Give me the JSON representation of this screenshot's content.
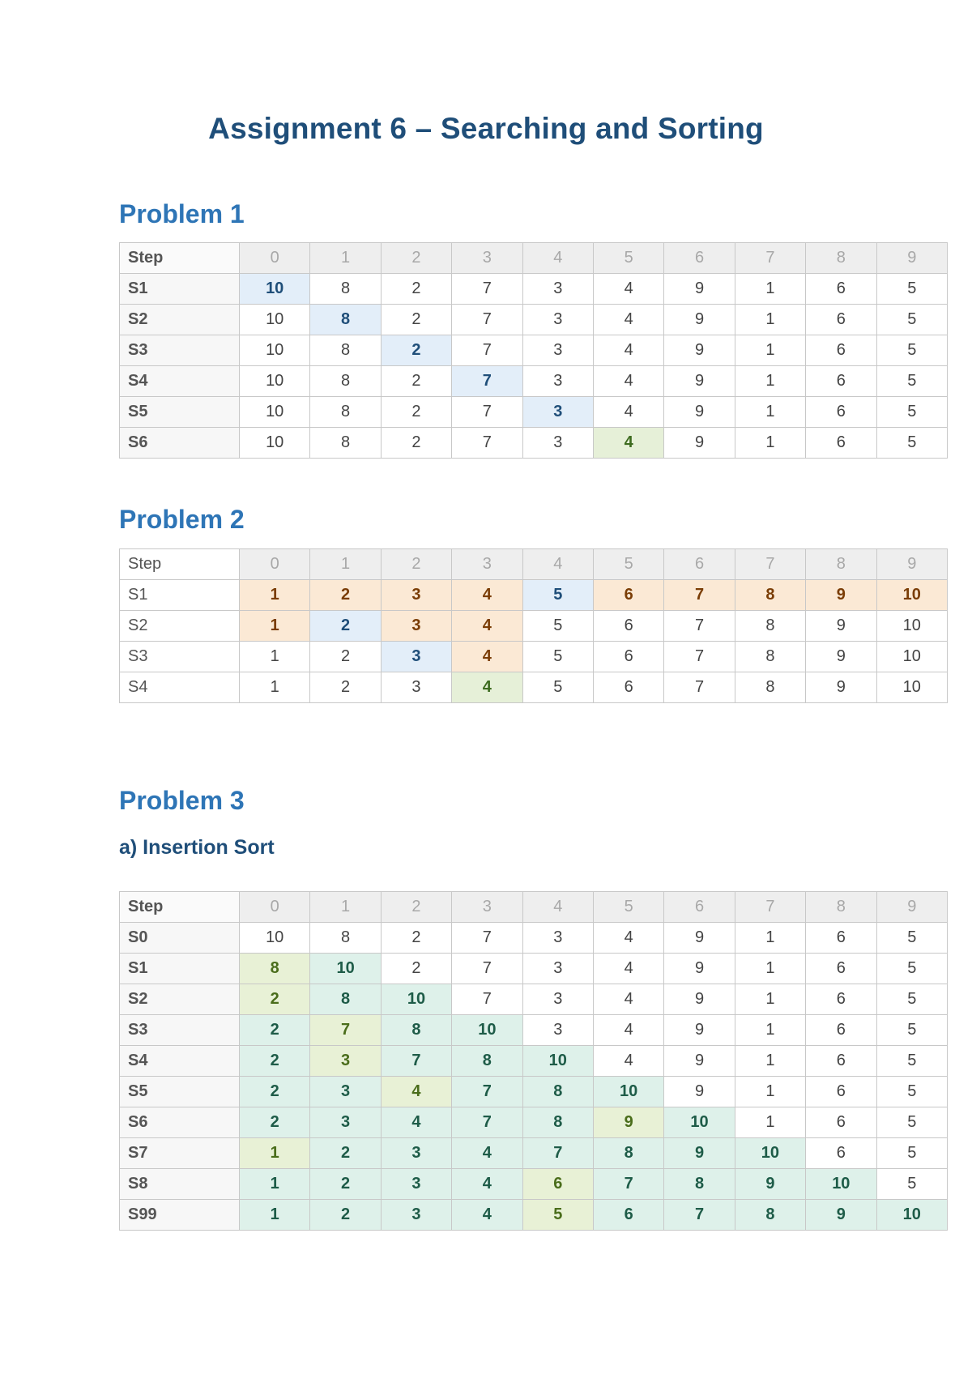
{
  "title": "Assignment 6 – Searching and Sorting",
  "problem1": {
    "heading": "Problem 1",
    "header": [
      "Step",
      "0",
      "1",
      "2",
      "3",
      "4",
      "5",
      "6",
      "7",
      "8",
      "9"
    ],
    "rows": [
      {
        "step": "S1",
        "values": [
          "10",
          "8",
          "2",
          "7",
          "3",
          "4",
          "9",
          "1",
          "6",
          "5"
        ],
        "hl": {
          "0": "blue"
        }
      },
      {
        "step": "S2",
        "values": [
          "10",
          "8",
          "2",
          "7",
          "3",
          "4",
          "9",
          "1",
          "6",
          "5"
        ],
        "hl": {
          "1": "blue"
        }
      },
      {
        "step": "S3",
        "values": [
          "10",
          "8",
          "2",
          "7",
          "3",
          "4",
          "9",
          "1",
          "6",
          "5"
        ],
        "hl": {
          "2": "blue"
        }
      },
      {
        "step": "S4",
        "values": [
          "10",
          "8",
          "2",
          "7",
          "3",
          "4",
          "9",
          "1",
          "6",
          "5"
        ],
        "hl": {
          "3": "blue"
        }
      },
      {
        "step": "S5",
        "values": [
          "10",
          "8",
          "2",
          "7",
          "3",
          "4",
          "9",
          "1",
          "6",
          "5"
        ],
        "hl": {
          "4": "blue"
        }
      },
      {
        "step": "S6",
        "values": [
          "10",
          "8",
          "2",
          "7",
          "3",
          "4",
          "9",
          "1",
          "6",
          "5"
        ],
        "hl": {
          "5": "green"
        }
      }
    ]
  },
  "problem2": {
    "heading": "Problem 2",
    "header": [
      "Step",
      "0",
      "1",
      "2",
      "3",
      "4",
      "5",
      "6",
      "7",
      "8",
      "9"
    ],
    "rows": [
      {
        "step": "S1",
        "values": [
          "1",
          "2",
          "3",
          "4",
          "5",
          "6",
          "7",
          "8",
          "9",
          "10"
        ],
        "hl": {
          "0": "orange",
          "1": "orange",
          "2": "orange",
          "3": "orange",
          "4": "blue",
          "5": "orange",
          "6": "orange",
          "7": "orange",
          "8": "orange",
          "9": "orange"
        }
      },
      {
        "step": "S2",
        "values": [
          "1",
          "2",
          "3",
          "4",
          "5",
          "6",
          "7",
          "8",
          "9",
          "10"
        ],
        "hl": {
          "0": "orange",
          "1": "blue",
          "2": "orange",
          "3": "orange"
        }
      },
      {
        "step": "S3",
        "values": [
          "1",
          "2",
          "3",
          "4",
          "5",
          "6",
          "7",
          "8",
          "9",
          "10"
        ],
        "hl": {
          "2": "blue",
          "3": "orange"
        }
      },
      {
        "step": "S4",
        "values": [
          "1",
          "2",
          "3",
          "4",
          "5",
          "6",
          "7",
          "8",
          "9",
          "10"
        ],
        "hl": {
          "3": "green"
        }
      }
    ]
  },
  "problem3": {
    "heading": "Problem 3",
    "subheading": "a) Insertion Sort",
    "header": [
      "Step",
      "0",
      "1",
      "2",
      "3",
      "4",
      "5",
      "6",
      "7",
      "8",
      "9"
    ],
    "rows": [
      {
        "step": "S0",
        "values": [
          "10",
          "8",
          "2",
          "7",
          "3",
          "4",
          "9",
          "1",
          "6",
          "5"
        ],
        "hl": {}
      },
      {
        "step": "S1",
        "values": [
          "8",
          "10",
          "2",
          "7",
          "3",
          "4",
          "9",
          "1",
          "6",
          "5"
        ],
        "hl": {
          "0": "lime",
          "1": "teal"
        }
      },
      {
        "step": "S2",
        "values": [
          "2",
          "8",
          "10",
          "7",
          "3",
          "4",
          "9",
          "1",
          "6",
          "5"
        ],
        "hl": {
          "0": "lime",
          "1": "teal",
          "2": "teal"
        }
      },
      {
        "step": "S3",
        "values": [
          "2",
          "7",
          "8",
          "10",
          "3",
          "4",
          "9",
          "1",
          "6",
          "5"
        ],
        "hl": {
          "0": "teal",
          "1": "lime",
          "2": "teal",
          "3": "teal"
        }
      },
      {
        "step": "S4",
        "values": [
          "2",
          "3",
          "7",
          "8",
          "10",
          "4",
          "9",
          "1",
          "6",
          "5"
        ],
        "hl": {
          "0": "teal",
          "1": "lime",
          "2": "teal",
          "3": "teal",
          "4": "teal"
        }
      },
      {
        "step": "S5",
        "values": [
          "2",
          "3",
          "4",
          "7",
          "8",
          "10",
          "9",
          "1",
          "6",
          "5"
        ],
        "hl": {
          "0": "teal",
          "1": "teal",
          "2": "lime",
          "3": "teal",
          "4": "teal",
          "5": "teal"
        }
      },
      {
        "step": "S6",
        "values": [
          "2",
          "3",
          "4",
          "7",
          "8",
          "9",
          "10",
          "1",
          "6",
          "5"
        ],
        "hl": {
          "0": "teal",
          "1": "teal",
          "2": "teal",
          "3": "teal",
          "4": "teal",
          "5": "lime",
          "6": "teal"
        }
      },
      {
        "step": "S7",
        "values": [
          "1",
          "2",
          "3",
          "4",
          "7",
          "8",
          "9",
          "10",
          "6",
          "5"
        ],
        "hl": {
          "0": "lime",
          "1": "teal",
          "2": "teal",
          "3": "teal",
          "4": "teal",
          "5": "teal",
          "6": "teal",
          "7": "teal"
        }
      },
      {
        "step": "S8",
        "values": [
          "1",
          "2",
          "3",
          "4",
          "6",
          "7",
          "8",
          "9",
          "10",
          "5"
        ],
        "hl": {
          "0": "teal",
          "1": "teal",
          "2": "teal",
          "3": "teal",
          "4": "lime",
          "5": "teal",
          "6": "teal",
          "7": "teal",
          "8": "teal"
        }
      },
      {
        "step": "S99",
        "values": [
          "1",
          "2",
          "3",
          "4",
          "5",
          "6",
          "7",
          "8",
          "9",
          "10"
        ],
        "hl": {
          "0": "teal",
          "1": "teal",
          "2": "teal",
          "3": "teal",
          "4": "lime",
          "5": "teal",
          "6": "teal",
          "7": "teal",
          "8": "teal",
          "9": "teal"
        }
      }
    ]
  }
}
